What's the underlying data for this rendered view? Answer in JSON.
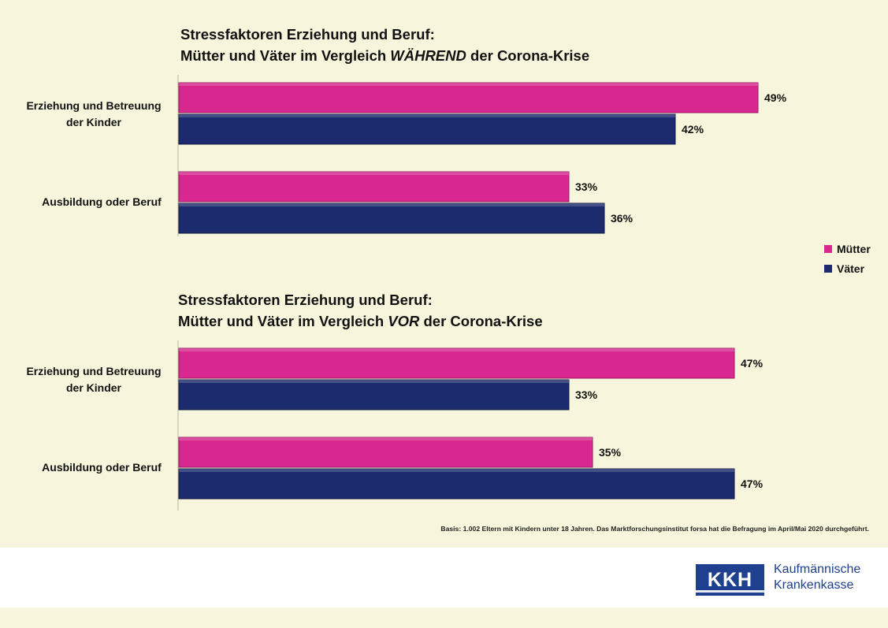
{
  "colors": {
    "muetter": "#d8278f",
    "vaeter": "#1c2a6e",
    "background": "#f7f6dc",
    "brand": "#1f3f8f"
  },
  "legend": {
    "muetter": "Mütter",
    "vaeter": "Väter"
  },
  "chart_data": [
    {
      "type": "bar",
      "orientation": "horizontal",
      "title": {
        "line1": "Stressfaktoren Erziehung und Beruf:",
        "line2_before": "Mütter und Väter im Vergleich ",
        "line2_emph": "WÄHREND",
        "line2_after": " der Corona-Krise"
      },
      "categories": [
        "Erziehung und Betreuung der Kinder",
        "Ausbildung oder Beruf"
      ],
      "series": [
        {
          "name": "Mütter",
          "values": [
            49,
            33
          ],
          "labels": [
            "49%",
            "33%"
          ]
        },
        {
          "name": "Väter",
          "values": [
            42,
            36
          ],
          "labels": [
            "42%",
            "36%"
          ]
        }
      ],
      "xlim": [
        0,
        55
      ]
    },
    {
      "type": "bar",
      "orientation": "horizontal",
      "title": {
        "line1": "Stressfaktoren Erziehung und Beruf:",
        "line2_before": "Mütter und Väter im Vergleich ",
        "line2_emph": "VOR",
        "line2_after": " der Corona-Krise"
      },
      "categories": [
        "Erziehung und Betreuung der Kinder",
        "Ausbildung oder Beruf"
      ],
      "series": [
        {
          "name": "Mütter",
          "values": [
            47,
            35
          ],
          "labels": [
            "47%",
            "35%"
          ]
        },
        {
          "name": "Väter",
          "values": [
            33,
            47
          ],
          "labels": [
            "33%",
            "47%"
          ]
        }
      ],
      "xlim": [
        0,
        55
      ]
    }
  ],
  "labels_display": {
    "cat1_line1": "Erziehung und Betreuung",
    "cat1_line2": "der Kinder",
    "cat2": "Ausbildung oder Beruf"
  },
  "footnote": "Basis: 1.002 Eltern mit Kindern unter 18 Jahren. Das Marktforschungsinstitut forsa hat die Befragung im April/Mai 2020 durchgeführt.",
  "brand": {
    "logo": "KKH",
    "line1": "Kaufmännische",
    "line2": "Krankenkasse"
  }
}
